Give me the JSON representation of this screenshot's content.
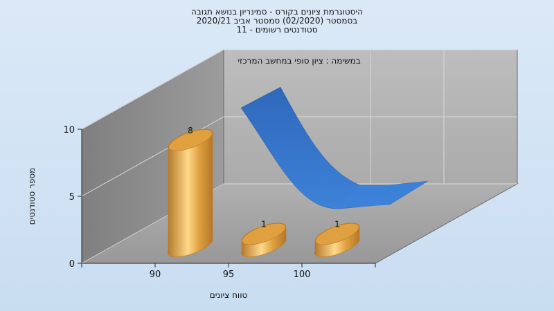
{
  "chart_data": {
    "type": "bar",
    "title_lines": [
      "היסטוגרמת ציונים בקורס - סמינריון בנושא תגובה",
      "בסמסטר (02/2020) סמסטר אביב 2020/21",
      "סטודנטים רשומים - 11"
    ],
    "annotation": "במשימה : ציון סופי במחשב המרכזי",
    "xlabel": "טווח ציונים",
    "ylabel": "מספר סטודנטים",
    "categories": [
      "90",
      "95",
      "100"
    ],
    "values": [
      8,
      1,
      1
    ],
    "data_labels": [
      "8",
      "1",
      "1"
    ],
    "ylim": [
      0,
      10
    ],
    "yticks": [
      0,
      5,
      10
    ],
    "xticks": [
      "90",
      "95",
      "100"
    ],
    "grid": true,
    "has_trend_surface": true,
    "colors": {
      "bar": "#e0a040",
      "bar_light": "#ffd98a",
      "bar_dark": "#b5782a",
      "trend": "#2f68bb",
      "trend_light": "#3d82d8",
      "wall_left": "#8a8a8a",
      "wall_back": "#b3b3b3",
      "floor": "#a3a3a3",
      "grid": "#d8d8d8"
    }
  }
}
